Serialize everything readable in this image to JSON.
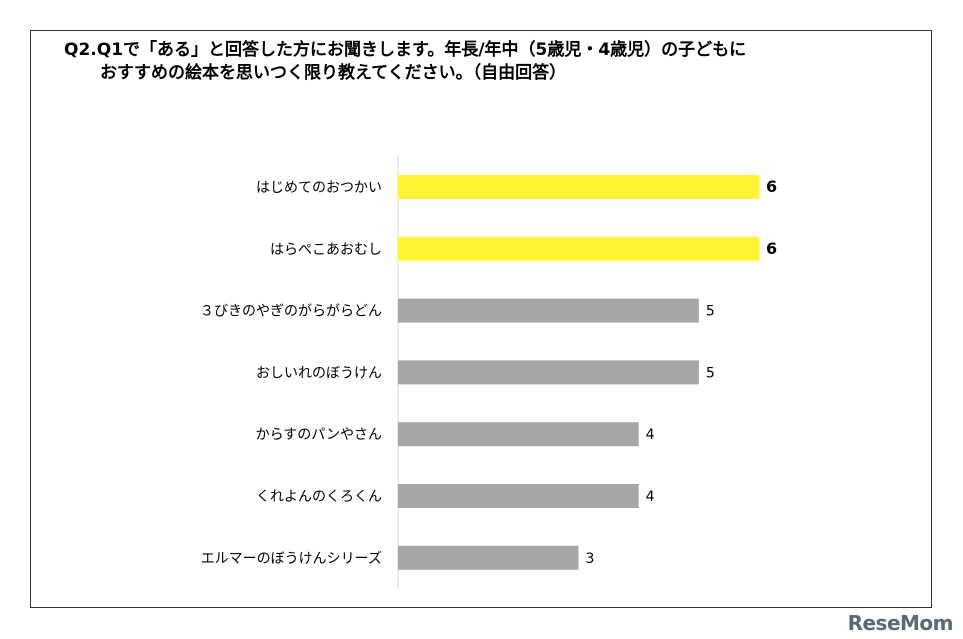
{
  "title": {
    "line1": "Q2.Q1で「ある」と回答した方にお聞きします。年長/年中（5歳児・4歳児）の子どもに",
    "line2": "おすすめの絵本を思いつく限り教えてください。（自由回答）"
  },
  "colors": {
    "highlight": "#FFF433",
    "default": "#A6A6A6"
  },
  "chart_data": {
    "type": "bar",
    "orientation": "horizontal",
    "categories": [
      "はじめてのおつかい",
      "はらぺこあおむし",
      "３びきのやぎのがらがらどん",
      "おしいれのぼうけん",
      "からすのパンやさん",
      "くれよんのくろくん",
      "エルマーのぼうけんシリーズ"
    ],
    "values": [
      6,
      6,
      5,
      5,
      4,
      4,
      3
    ],
    "highlighted": [
      true,
      true,
      false,
      false,
      false,
      false,
      false
    ],
    "xlim": [
      0,
      6
    ],
    "grid": false
  },
  "watermark": "ReseMom"
}
